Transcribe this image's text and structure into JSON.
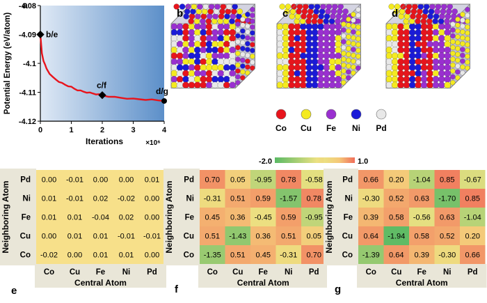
{
  "panel_labels": {
    "a": "a",
    "b": "b",
    "c": "c",
    "d": "d",
    "e": "e",
    "f": "f",
    "g": "g"
  },
  "chart_data": [
    {
      "type": "line",
      "panel": "a",
      "ylabel": "Potential Energy (eV/atom)",
      "xlabel": "Iterations",
      "x_multiplier": "×10⁶",
      "xlim": [
        0,
        4
      ],
      "ylim": [
        -4.12,
        -4.08
      ],
      "xticks": [
        "0",
        "1",
        "2",
        "3",
        "4"
      ],
      "yticks": [
        "-4.08",
        "-4.09",
        "-4.1",
        "-4.11",
        "-4.12"
      ],
      "annotations": [
        "b/e",
        "c/f",
        "d/g"
      ],
      "series": [
        {
          "x": [
            0,
            0.05,
            0.1,
            0.15,
            0.2,
            0.3,
            0.4,
            0.5,
            0.6,
            0.7,
            0.8,
            0.9,
            1.0,
            1.1,
            1.2,
            1.3,
            1.4,
            1.5,
            1.6,
            1.7,
            1.8,
            1.9,
            2.0,
            2.2,
            2.4,
            2.6,
            2.8,
            3.0,
            3.2,
            3.4,
            3.6,
            3.8,
            4.0
          ],
          "y": [
            -4.09,
            -4.0965,
            -4.099,
            -4.1005,
            -4.1018,
            -4.1035,
            -4.1048,
            -4.1056,
            -4.1063,
            -4.1069,
            -4.1074,
            -4.1078,
            -4.1082,
            -4.1088,
            -4.1092,
            -4.1095,
            -4.1098,
            -4.11,
            -4.1102,
            -4.1104,
            -4.1106,
            -4.1108,
            -4.1111,
            -4.1114,
            -4.1117,
            -4.1119,
            -4.1121,
            -4.1123,
            -4.1124,
            -4.1125,
            -4.1126,
            -4.1128,
            -4.113
          ]
        }
      ],
      "markers": [
        {
          "label": "b/e",
          "x": 0,
          "y": -4.09
        },
        {
          "label": "c/f",
          "x": 2,
          "y": -4.111
        },
        {
          "label": "d/g",
          "x": 4,
          "y": -4.113
        }
      ]
    },
    {
      "type": "heatmap",
      "panel": "e",
      "xlabel": "Central Atom",
      "ylabel": "Neighboring Atom",
      "x_categories": [
        "Co",
        "Cu",
        "Fe",
        "Ni",
        "Pd"
      ],
      "y_categories": [
        "Pd",
        "Ni",
        "Fe",
        "Cu",
        "Co"
      ],
      "values": [
        [
          "0.00",
          "-0.01",
          "0.00",
          "0.00",
          "0.01"
        ],
        [
          "0.01",
          "-0.01",
          "0.02",
          "-0.02",
          "0.00"
        ],
        [
          "0.01",
          "0.01",
          "-0.04",
          "0.02",
          "0.00"
        ],
        [
          "0.00",
          "0.01",
          "0.01",
          "-0.01",
          "-0.01"
        ],
        [
          "-0.02",
          "0.00",
          "0.01",
          "0.01",
          "0.00"
        ]
      ]
    },
    {
      "type": "heatmap",
      "panel": "f",
      "xlabel": "Central Atom",
      "ylabel": "Neighboring Atom",
      "x_categories": [
        "Co",
        "Cu",
        "Fe",
        "Ni",
        "Pd"
      ],
      "y_categories": [
        "Pd",
        "Ni",
        "Fe",
        "Cu",
        "Co"
      ],
      "values": [
        [
          "0.70",
          "0.05",
          "-0.95",
          "0.78",
          "-0.58"
        ],
        [
          "-0.31",
          "0.51",
          "0.59",
          "-1.57",
          "0.78"
        ],
        [
          "0.45",
          "0.36",
          "-0.45",
          "0.59",
          "-0.95"
        ],
        [
          "0.51",
          "-1.43",
          "0.36",
          "0.51",
          "0.05"
        ],
        [
          "-1.35",
          "0.51",
          "0.45",
          "-0.31",
          "0.70"
        ]
      ]
    },
    {
      "type": "heatmap",
      "panel": "g",
      "xlabel": "Central Atom",
      "ylabel": "Neighboring Atom",
      "x_categories": [
        "Co",
        "Cu",
        "Fe",
        "Ni",
        "Pd"
      ],
      "y_categories": [
        "Pd",
        "Ni",
        "Fe",
        "Cu",
        "Co"
      ],
      "values": [
        [
          "0.66",
          "0.20",
          "-1.04",
          "0.85",
          "-0.67"
        ],
        [
          "-0.30",
          "0.52",
          "0.63",
          "-1.70",
          "0.85"
        ],
        [
          "0.39",
          "0.58",
          "-0.56",
          "0.63",
          "-1.04"
        ],
        [
          "0.64",
          "-1.94",
          "0.58",
          "0.52",
          "0.20"
        ],
        [
          "-1.39",
          "0.64",
          "0.39",
          "-0.30",
          "0.66"
        ]
      ]
    }
  ],
  "colorbar": {
    "min_label": "-2.0",
    "max_label": "1.0",
    "min": -2.0,
    "max": 1.0
  },
  "legend": {
    "items": [
      {
        "label": "Co",
        "color": "#e8141c"
      },
      {
        "label": "Cu",
        "color": "#f4ea20"
      },
      {
        "label": "Fe",
        "color": "#9a2fd0"
      },
      {
        "label": "Ni",
        "color": "#1a1ad8"
      },
      {
        "label": "Pd",
        "color": "#e8e8e8"
      }
    ]
  },
  "colors": {
    "gradient_left": "#dfe9f5",
    "gradient_right": "#5c8fc9",
    "curve": "#e8141c"
  }
}
